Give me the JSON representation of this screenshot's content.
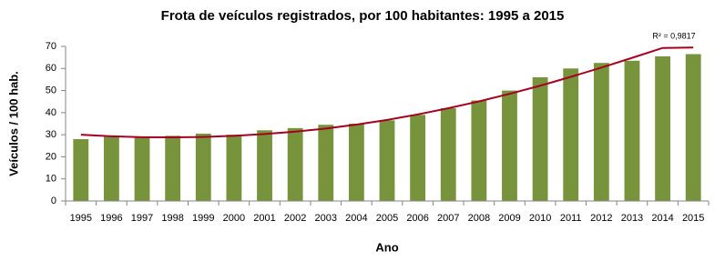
{
  "chart_data": {
    "type": "bar",
    "title": "Frota de veículos registrados, por 100 habitantes: 1995 a 2015",
    "x_label": "Ano",
    "y_label": "Veículos / 100 hab.",
    "categories": [
      "1995",
      "1996",
      "1997",
      "1998",
      "1999",
      "2000",
      "2001",
      "2002",
      "2003",
      "2004",
      "2005",
      "2006",
      "2007",
      "2008",
      "2009",
      "2010",
      "2011",
      "2012",
      "2013",
      "2014",
      "2015"
    ],
    "values": [
      28,
      29,
      29,
      29.5,
      30.5,
      30,
      32,
      33,
      34.5,
      35,
      36.5,
      39,
      42,
      45.5,
      50,
      56,
      60,
      62.5,
      63.5,
      65.5,
      66.5
    ],
    "color": "#77933c",
    "trendline": {
      "color": "#a50021",
      "annotation": "R² = 0,9817",
      "values": [
        30,
        29.3,
        28.9,
        28.8,
        29,
        29.5,
        30.3,
        31.4,
        32.8,
        34.6,
        36.7,
        39.2,
        42,
        45.1,
        48.5,
        52.2,
        56.2,
        60.4,
        64.8,
        69.3,
        69.5
      ]
    },
    "ylim": [
      0,
      70
    ],
    "yticks": [
      0,
      10,
      20,
      30,
      40,
      50,
      60,
      70
    ],
    "grid": false
  }
}
